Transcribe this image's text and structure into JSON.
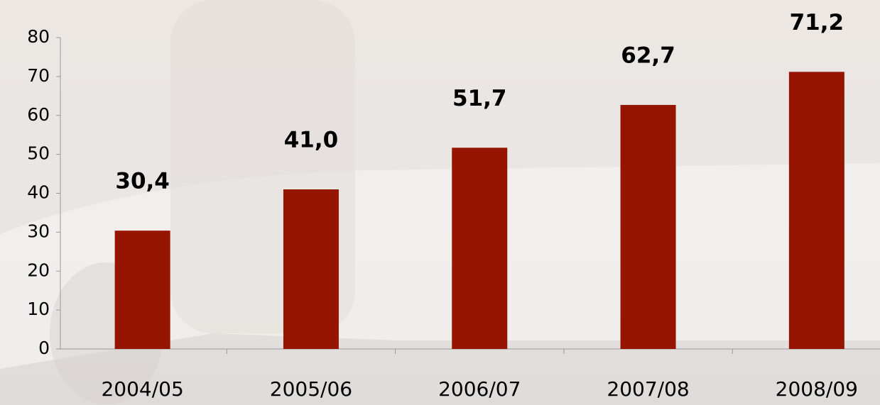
{
  "chart_data": {
    "type": "bar",
    "categories": [
      "2004/05",
      "2005/06",
      "2006/07",
      "2007/08",
      "2008/09"
    ],
    "values": [
      30.4,
      41.0,
      51.7,
      62.7,
      71.2
    ],
    "value_labels": [
      "30,4",
      "41,0",
      "51,7",
      "62,7",
      "71,2"
    ],
    "color": "#961500",
    "ylim": [
      0,
      80
    ],
    "yticks": [
      0,
      10,
      20,
      30,
      40,
      50,
      60,
      70,
      80
    ]
  }
}
